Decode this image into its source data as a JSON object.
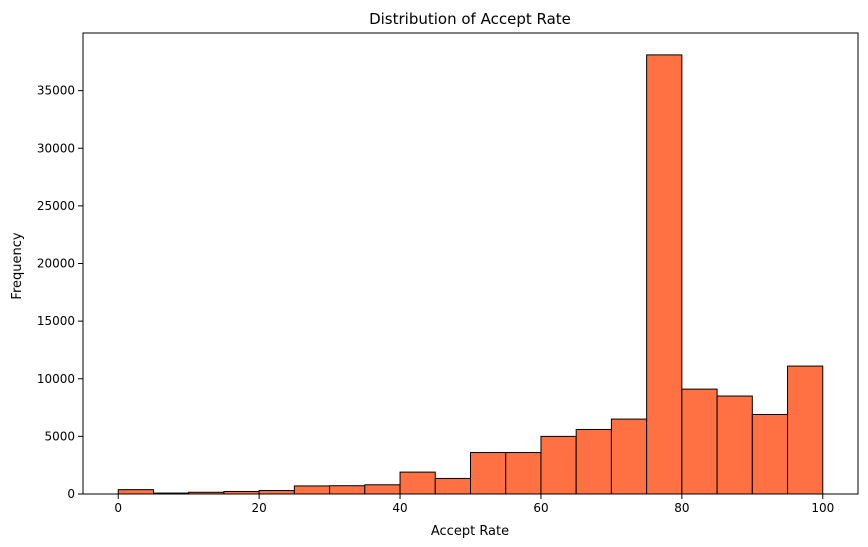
{
  "chart_data": {
    "type": "bar",
    "title": "Distribution of Accept Rate",
    "xlabel": "Accept Rate",
    "ylabel": "Frequency",
    "bin_edges": [
      0,
      5,
      10,
      15,
      20,
      25,
      30,
      35,
      40,
      45,
      50,
      55,
      60,
      65,
      70,
      75,
      80,
      85,
      90,
      95,
      100
    ],
    "values": [
      380,
      80,
      150,
      220,
      300,
      700,
      720,
      800,
      1900,
      1350,
      3600,
      3600,
      5000,
      5600,
      6500,
      38100,
      9100,
      8500,
      6900,
      11100
    ],
    "xlim": [
      -5,
      105
    ],
    "ylim": [
      0,
      40000
    ],
    "x_ticks": [
      "0",
      "20",
      "40",
      "60",
      "80",
      "100"
    ],
    "y_ticks": [
      "0",
      "5000",
      "10000",
      "15000",
      "20000",
      "25000",
      "30000",
      "35000"
    ],
    "bar_color": "#ff7043",
    "edge_color": "#000000",
    "grid": false
  }
}
